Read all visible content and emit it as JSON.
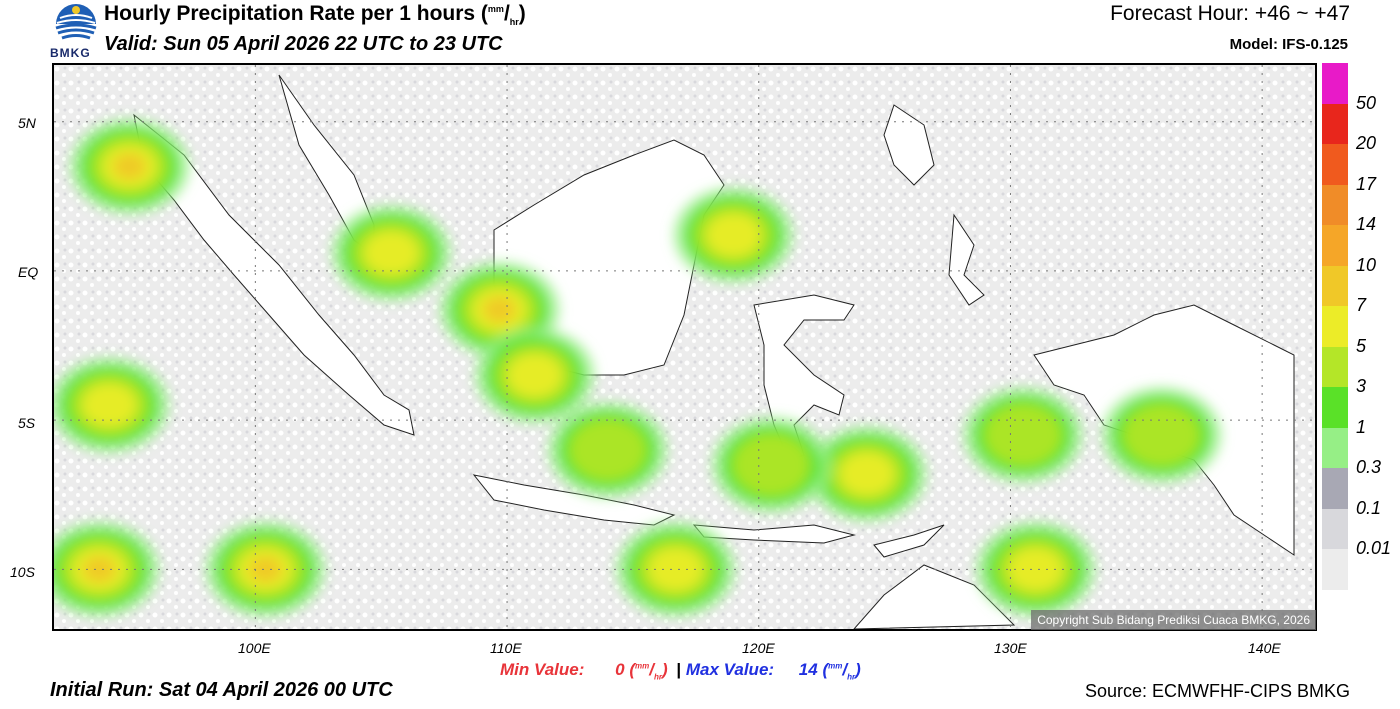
{
  "header": {
    "title": "Hourly Precipitation Rate per 1 hours",
    "title_unit_sup": "mm",
    "title_unit_sub": "hr",
    "valid": "Valid: Sun 05 April 2026 22 UTC to 23 UTC",
    "forecast_hour": "Forecast Hour: +46 ~ +47",
    "model": "Model: IFS-0.125",
    "logo_text": "BMKG"
  },
  "map": {
    "y_labels": [
      "5N",
      "EQ",
      "5S",
      "10S"
    ],
    "x_labels": [
      "100E",
      "110E",
      "120E",
      "130E",
      "140E"
    ],
    "copyright": "Copyright Sub Bidang Prediksi Cuaca BMKG, 2026",
    "rain_cells": [
      {
        "lon": 95.0,
        "lat": 3.5,
        "level": 4
      },
      {
        "lon": 94.2,
        "lat": -4.5,
        "level": 3
      },
      {
        "lon": 93.8,
        "lat": -10.0,
        "level": 4
      },
      {
        "lon": 100.4,
        "lat": -10.0,
        "level": 4
      },
      {
        "lon": 105.4,
        "lat": 0.6,
        "level": 3
      },
      {
        "lon": 109.7,
        "lat": -1.3,
        "level": 4
      },
      {
        "lon": 111.1,
        "lat": -3.5,
        "level": 3
      },
      {
        "lon": 119.0,
        "lat": 1.2,
        "level": 3
      },
      {
        "lon": 124.3,
        "lat": -6.8,
        "level": 3
      },
      {
        "lon": 131.0,
        "lat": -10.0,
        "level": 3
      },
      {
        "lon": 116.7,
        "lat": -10.0,
        "level": 3
      },
      {
        "lon": 130.5,
        "lat": -5.5,
        "level": 2
      },
      {
        "lon": 136.0,
        "lat": -5.5,
        "level": 2
      },
      {
        "lon": 114.0,
        "lat": -6.0,
        "level": 2
      },
      {
        "lon": 120.5,
        "lat": -6.5,
        "level": 2
      }
    ]
  },
  "legend": {
    "labels": [
      "50",
      "20",
      "17",
      "14",
      "10",
      "7",
      "5",
      "3",
      "1",
      "0.3",
      "0.1",
      "0.01"
    ],
    "colors": [
      "#e81ac8",
      "#e8261c",
      "#f05a1e",
      "#f08c28",
      "#f5a628",
      "#f0c828",
      "#ecec28",
      "#b4e628",
      "#5ae128",
      "#96ef86",
      "#a8a8b4",
      "#d8d8dc",
      "#ececec"
    ]
  },
  "footer": {
    "min_label": "Min Value:",
    "min_value": "0",
    "max_label": "Max Value:",
    "max_value": "14",
    "unit_sup": "mm",
    "unit_sub": "hr",
    "separator": "|",
    "initial_run": "Initial Run: Sat 04 April 2026 00 UTC",
    "source": "Source: ECMWFHF-CIPS BMKG"
  },
  "colors": {
    "min": "#e8343a",
    "max": "#2030e0"
  }
}
